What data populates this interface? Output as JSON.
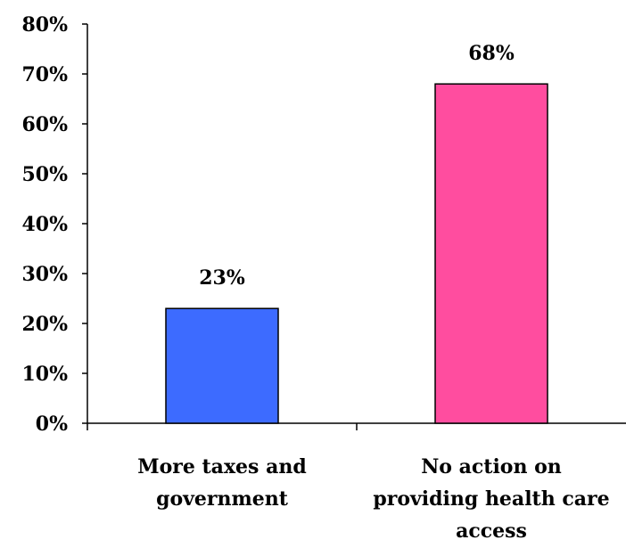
{
  "chart_data": {
    "type": "bar",
    "title": "",
    "xlabel": "",
    "ylabel": "",
    "categories": [
      [
        "More taxes and",
        "government"
      ],
      [
        "No action on",
        "providing health care",
        "access"
      ]
    ],
    "values": [
      23,
      68
    ],
    "data_labels": [
      "23%",
      "68%"
    ],
    "colors": [
      "#3d6bff",
      "#ff4d9f"
    ],
    "ylim": [
      0,
      80
    ],
    "yticks": [
      0,
      10,
      20,
      30,
      40,
      50,
      60,
      70,
      80
    ],
    "ytick_labels": [
      "0%",
      "10%",
      "20%",
      "30%",
      "40%",
      "50%",
      "60%",
      "70%",
      "80%"
    ],
    "grid": false,
    "legend": "none"
  }
}
